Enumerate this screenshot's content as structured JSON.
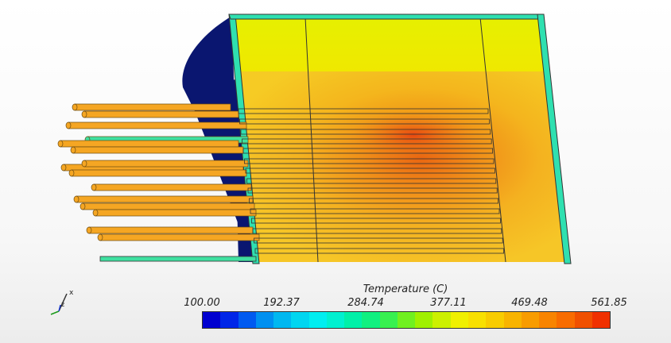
{
  "scene": {
    "description_hidden": false,
    "colors": {
      "cold": "#0a1670",
      "frame": "#2fe0b0",
      "tube": "#f5a623",
      "tube_edge": "#6b4a10",
      "cold_tube": "#3fe0a0"
    }
  },
  "legend": {
    "title": "Temperature (C)",
    "ticks": [
      "100.00",
      "192.37",
      "284.74",
      "377.11",
      "469.48",
      "561.85"
    ],
    "colors": [
      "#0000d0",
      "#0026e8",
      "#005af0",
      "#0090f0",
      "#00b8f0",
      "#00d6f0",
      "#00eef0",
      "#00f0d0",
      "#00f0a8",
      "#10f080",
      "#38f050",
      "#70f020",
      "#a0f000",
      "#ccf000",
      "#f0f000",
      "#f8e000",
      "#f8cc00",
      "#f8b400",
      "#f89c00",
      "#f88400",
      "#f86c00",
      "#f05000",
      "#f03000"
    ]
  },
  "triad": {
    "x_label": "x",
    "z_label": "z"
  }
}
